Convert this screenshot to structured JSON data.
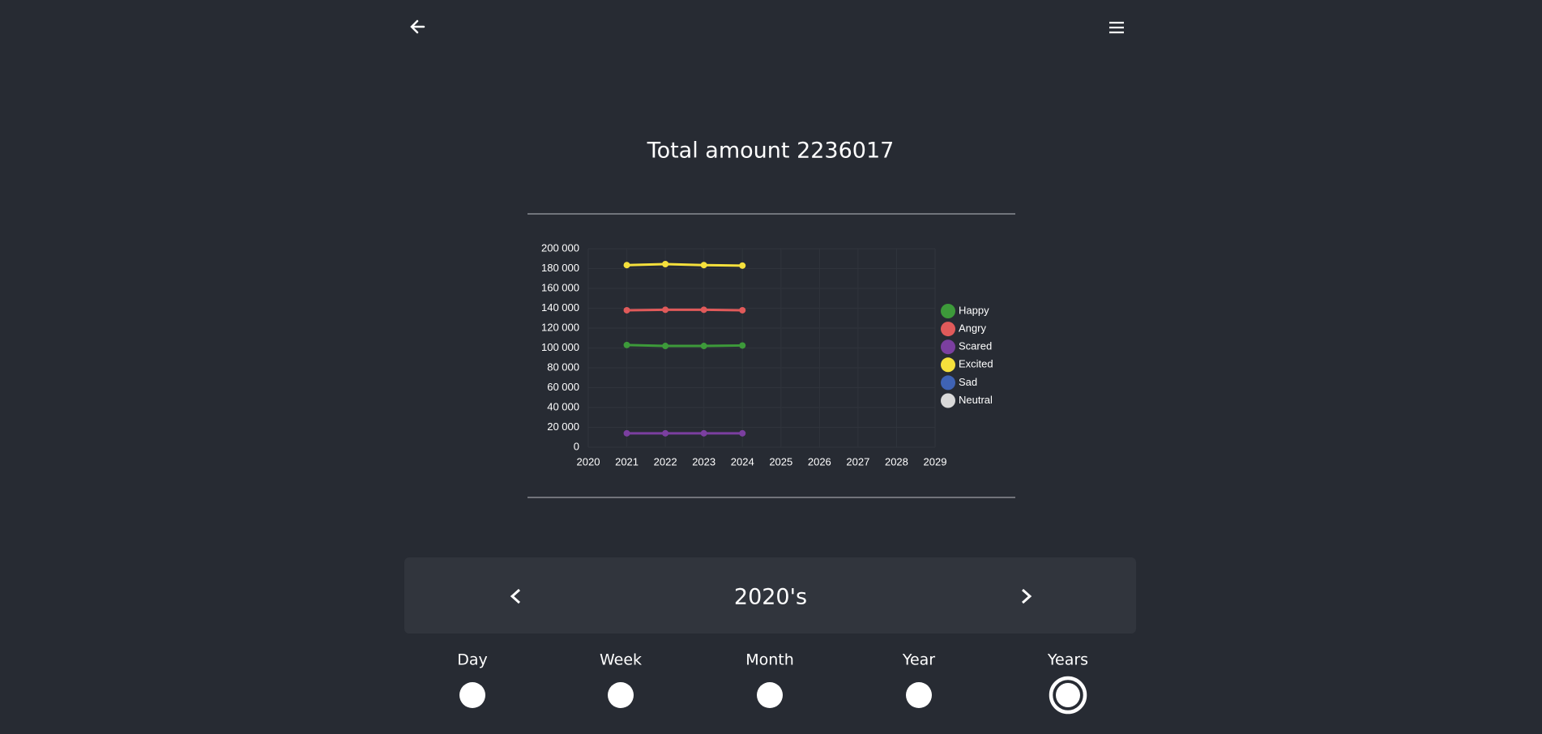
{
  "page": {
    "total": "Total amount 2236017",
    "period": "2020's",
    "ranges": [
      "Day",
      "Week",
      "Month",
      "Year",
      "Years"
    ],
    "selected_range": 4
  },
  "chart_data": {
    "type": "line",
    "x": [
      2021,
      2022,
      2023,
      2024
    ],
    "series": [
      {
        "name": "Happy",
        "color": "#3d9a3a",
        "values": [
          103000,
          102000,
          102000,
          102500
        ]
      },
      {
        "name": "Angry",
        "color": "#e05a5a",
        "values": [
          138000,
          138500,
          138500,
          138000
        ]
      },
      {
        "name": "Scared",
        "color": "#7b3fa0",
        "values": [
          14000,
          14000,
          14000,
          14000
        ]
      },
      {
        "name": "Excited",
        "color": "#f5e03c",
        "values": [
          183500,
          184500,
          183500,
          183000
        ]
      },
      {
        "name": "Sad",
        "color": "#3f63b5",
        "values": [
          null,
          null,
          null,
          null
        ]
      },
      {
        "name": "Neutral",
        "color": "#d9d9d9",
        "values": [
          null,
          null,
          null,
          null
        ]
      }
    ],
    "xlim": [
      2020,
      2029
    ],
    "xticks": [
      2020,
      2021,
      2022,
      2023,
      2024,
      2025,
      2026,
      2027,
      2028,
      2029
    ],
    "ylim": [
      0,
      200000
    ],
    "yticks": [
      0,
      {
        "value": 20000,
        "label": "20 000"
      },
      {
        "value": 40000,
        "label": "40 000"
      },
      {
        "value": 60000,
        "label": "60 000"
      },
      {
        "value": 80000,
        "label": "80 000"
      },
      {
        "value": 100000,
        "label": "100 000"
      },
      {
        "value": 120000,
        "label": "120 000"
      },
      {
        "value": 140000,
        "label": "140 000"
      },
      {
        "value": 160000,
        "label": "160 000"
      },
      {
        "value": 180000,
        "label": "180 000"
      },
      {
        "value": 200000,
        "label": "200 000"
      }
    ],
    "grid": true,
    "legend": "right"
  }
}
